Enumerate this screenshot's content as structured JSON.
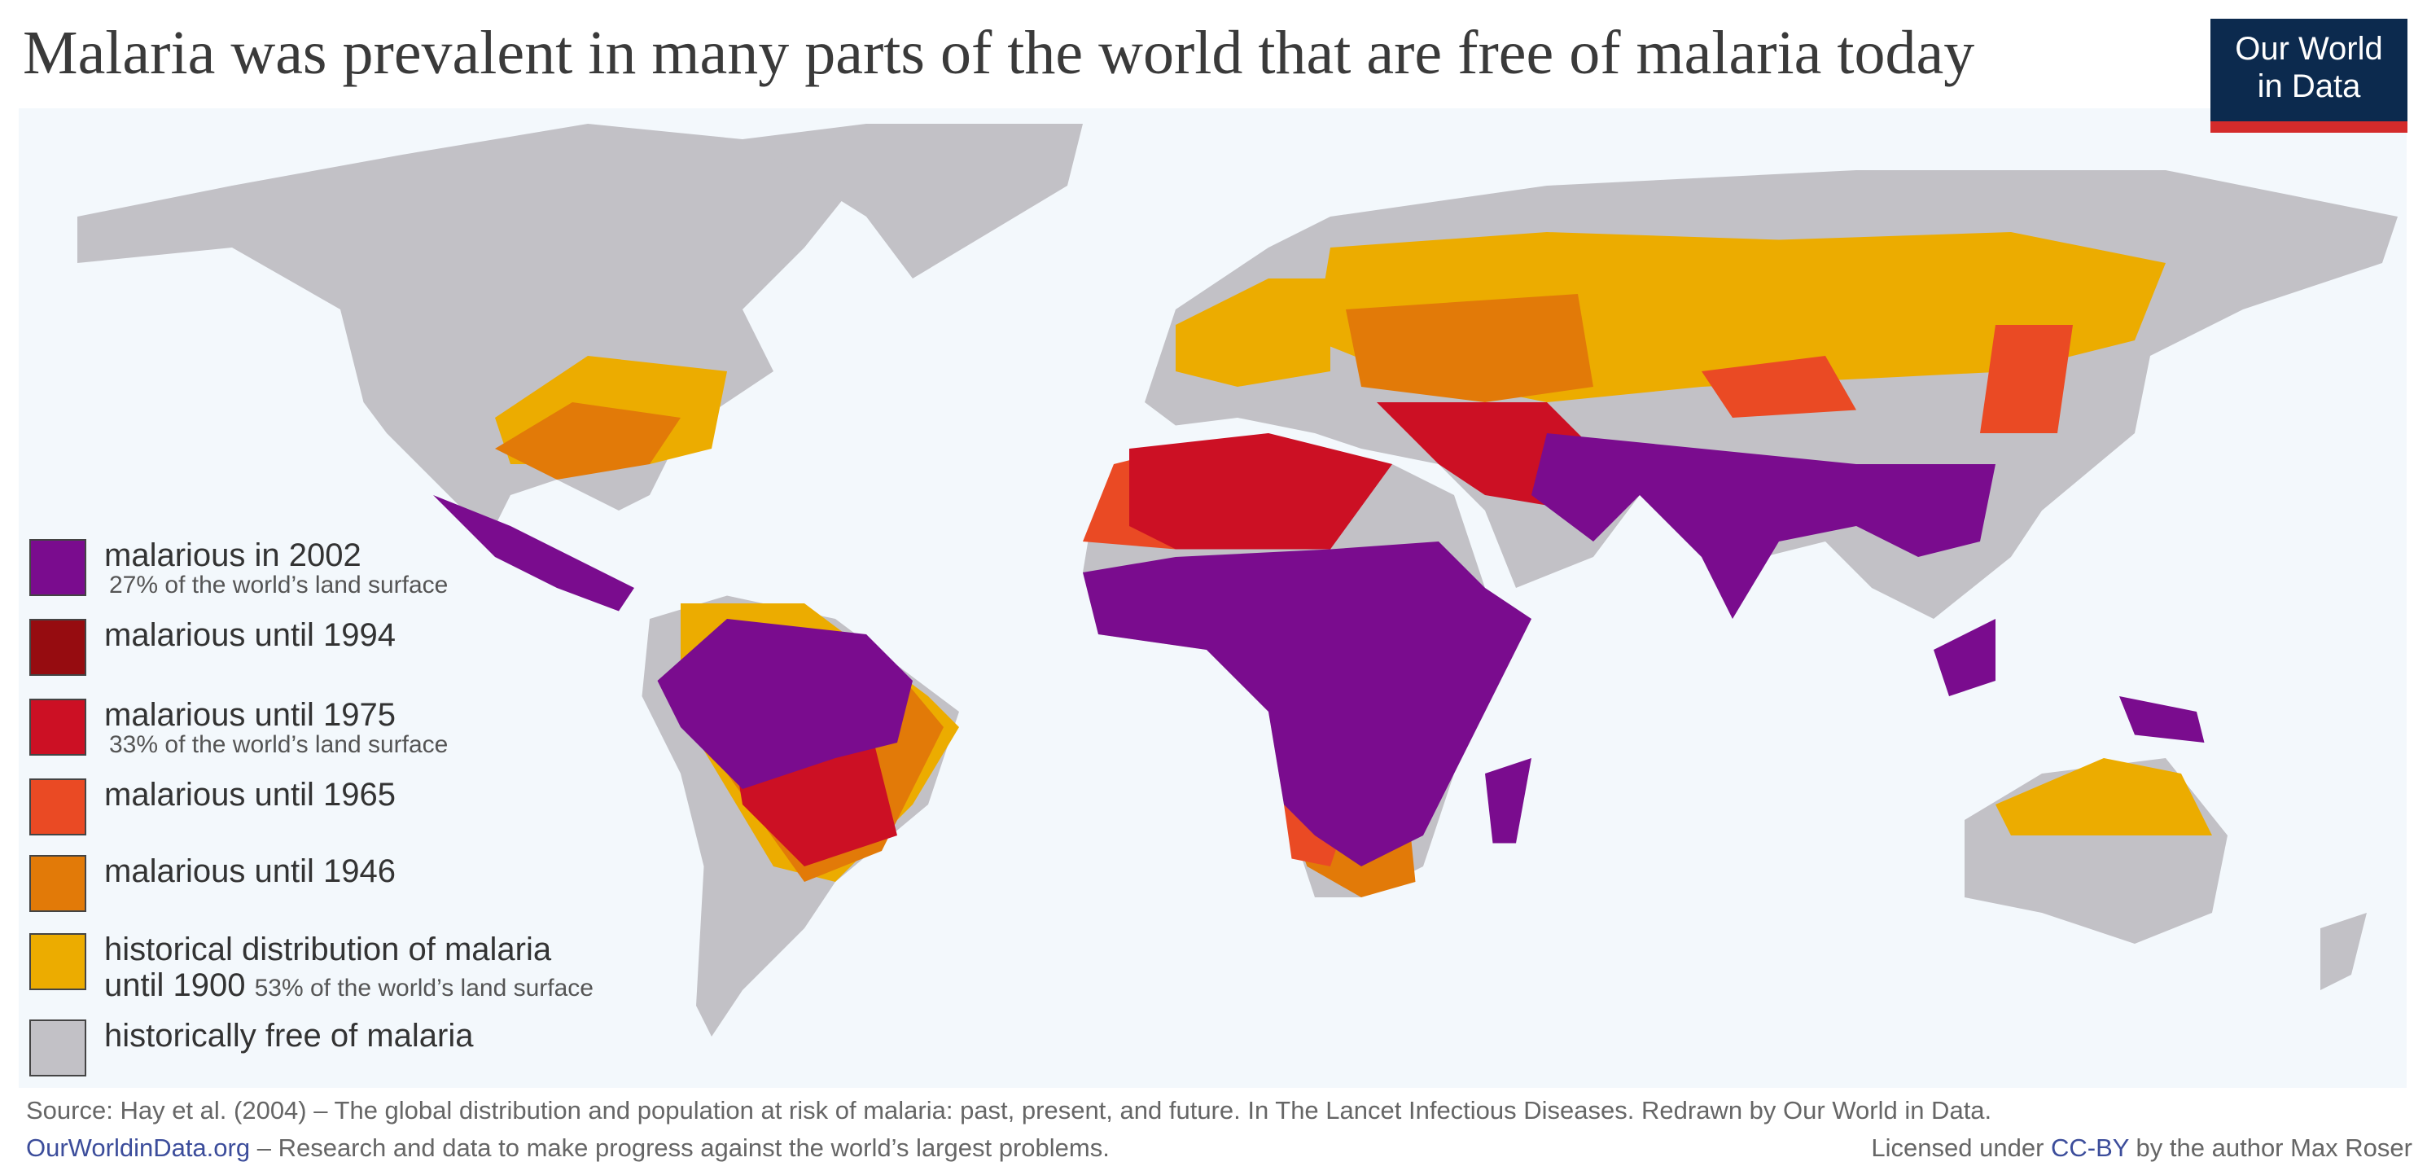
{
  "header": {
    "title": "Malaria was prevalent in many parts of the world that are free of malaria today",
    "logo": "Our World\nin Data"
  },
  "legend": [
    {
      "label": "malarious in 2002",
      "note": "27% of the world’s land surface",
      "color": "#7a0c8e"
    },
    {
      "label": "malarious until 1994",
      "note": null,
      "color": "#960c10"
    },
    {
      "label": "malarious until 1975",
      "note": "33% of the world’s land surface",
      "color": "#cc1024"
    },
    {
      "label": "malarious until 1965",
      "note": null,
      "color": "#ea4a24"
    },
    {
      "label": "malarious until 1946",
      "note": null,
      "color": "#e27a08"
    },
    {
      "label": "historical distribution of malaria\nuntil 1900",
      "note": "53% of the world’s land surface",
      "color": "#ecac00"
    },
    {
      "label": "historically free of malaria",
      "note": null,
      "color": "#c2c1c6"
    }
  ],
  "footer": {
    "source": "Source: Hay et al. (2004) – The global distribution and population at risk of malaria: past, present, and future. In The Lancet Infectious Diseases. Redrawn by Our World in Data.",
    "site": "OurWorldinData.org",
    "tagline": " – Research and data to make progress against the world’s largest problems.",
    "license_prefix": "Licensed under ",
    "license_link": "CC-BY",
    "license_suffix": " by the author Max Roser"
  }
}
